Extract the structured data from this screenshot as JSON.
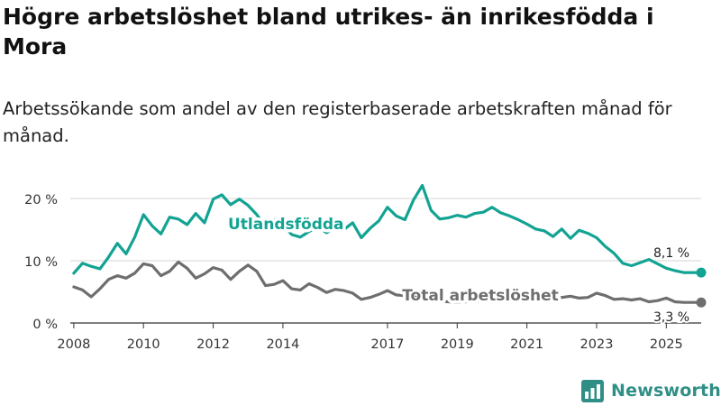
{
  "title": "Högre arbetslöshet bland utrikes- än inrikesfödda i Mora",
  "subtitle": "Arbetssökande som andel av den registerbaserade arbetskraften månad för månad.",
  "brand": {
    "name": "Newsworthy",
    "icon": "bar-chart-logo-icon",
    "color": "#2f8f86"
  },
  "chart_data": {
    "type": "line",
    "title": "Högre arbetslöshet bland utrikes- än inrikesfödda i Mora",
    "xlabel": "",
    "ylabel": "",
    "xlim": [
      2007.9,
      2026.0
    ],
    "ylim": [
      0,
      20
    ],
    "grid": true,
    "y_ticks": [
      0,
      10,
      20
    ],
    "y_tick_labels": [
      "0 %",
      "10 %",
      "20 %"
    ],
    "x_ticks": [
      2008,
      2010,
      2012,
      2014,
      2017,
      2019,
      2021,
      2023,
      2025
    ],
    "x_tick_labels": [
      "2008",
      "2010",
      "2012",
      "2014",
      "2017",
      "2019",
      "2021",
      "2023",
      "2025"
    ],
    "series": [
      {
        "name": "Utlandsfödda",
        "color": "#13a393",
        "end_label": "8,1 %",
        "x": [
          2008.0,
          2008.25,
          2008.5,
          2008.75,
          2009.0,
          2009.25,
          2009.5,
          2009.75,
          2010.0,
          2010.25,
          2010.5,
          2010.75,
          2011.0,
          2011.25,
          2011.5,
          2011.75,
          2012.0,
          2012.25,
          2012.5,
          2012.75,
          2013.0,
          2013.25,
          2013.5,
          2013.75,
          2014.0,
          2014.25,
          2014.5,
          2014.75,
          2015.0,
          2015.25,
          2015.5,
          2015.75,
          2016.0,
          2016.25,
          2016.5,
          2016.75,
          2017.0,
          2017.25,
          2017.5,
          2017.75,
          2018.0,
          2018.25,
          2018.5,
          2018.75,
          2019.0,
          2019.25,
          2019.5,
          2019.75,
          2020.0,
          2020.25,
          2020.5,
          2020.75,
          2021.0,
          2021.25,
          2021.5,
          2021.75,
          2022.0,
          2022.25,
          2022.5,
          2022.75,
          2023.0,
          2023.25,
          2023.5,
          2023.75,
          2024.0,
          2024.25,
          2024.5,
          2024.75,
          2025.0,
          2025.25,
          2025.5,
          2025.75,
          2026.0
        ],
        "values": [
          8.0,
          9.6,
          9.1,
          8.7,
          10.6,
          12.8,
          11.1,
          13.8,
          17.4,
          15.6,
          14.3,
          17.0,
          16.7,
          15.8,
          17.6,
          16.1,
          19.9,
          20.6,
          19.0,
          19.9,
          18.9,
          17.4,
          15.5,
          16.6,
          15.8,
          14.2,
          13.8,
          14.7,
          15.4,
          14.5,
          15.2,
          15.0,
          16.1,
          13.7,
          15.2,
          16.4,
          18.6,
          17.2,
          16.6,
          19.8,
          22.1,
          18.1,
          16.7,
          16.9,
          17.3,
          17.0,
          17.6,
          17.8,
          18.6,
          17.7,
          17.2,
          16.6,
          15.9,
          15.1,
          14.8,
          13.9,
          15.1,
          13.6,
          14.9,
          14.4,
          13.7,
          12.3,
          11.2,
          9.6,
          9.2,
          9.7,
          10.2,
          9.5,
          8.8,
          8.4,
          8.1,
          8.1,
          8.1
        ]
      },
      {
        "name": "Total arbetslöshet",
        "color": "#6e6e6e",
        "end_label": "3,3 %",
        "x": [
          2008.0,
          2008.25,
          2008.5,
          2008.75,
          2009.0,
          2009.25,
          2009.5,
          2009.75,
          2010.0,
          2010.25,
          2010.5,
          2010.75,
          2011.0,
          2011.25,
          2011.5,
          2011.75,
          2012.0,
          2012.25,
          2012.5,
          2012.75,
          2013.0,
          2013.25,
          2013.5,
          2013.75,
          2014.0,
          2014.25,
          2014.5,
          2014.75,
          2015.0,
          2015.25,
          2015.5,
          2015.75,
          2016.0,
          2016.25,
          2016.5,
          2016.75,
          2017.0,
          2017.25,
          2017.5,
          2017.75,
          2018.0,
          2018.25,
          2018.5,
          2018.75,
          2019.0,
          2019.25,
          2019.5,
          2019.75,
          2020.0,
          2020.25,
          2020.5,
          2020.75,
          2021.0,
          2021.25,
          2021.5,
          2021.75,
          2022.0,
          2022.25,
          2022.5,
          2022.75,
          2023.0,
          2023.25,
          2023.5,
          2023.75,
          2024.0,
          2024.25,
          2024.5,
          2024.75,
          2025.0,
          2025.25,
          2025.5,
          2025.75,
          2026.0
        ],
        "values": [
          5.8,
          5.3,
          4.2,
          5.5,
          7.0,
          7.6,
          7.2,
          8.0,
          9.5,
          9.2,
          7.6,
          8.3,
          9.8,
          8.8,
          7.2,
          7.9,
          8.9,
          8.5,
          7.0,
          8.3,
          9.3,
          8.3,
          6.0,
          6.2,
          6.8,
          5.5,
          5.3,
          6.3,
          5.7,
          4.9,
          5.4,
          5.2,
          4.8,
          3.8,
          4.1,
          4.6,
          5.2,
          4.5,
          4.4,
          4.2,
          4.0,
          3.8,
          3.5,
          3.4,
          3.3,
          3.4,
          3.6,
          3.5,
          3.8,
          3.7,
          3.9,
          3.6,
          4.1,
          4.0,
          4.2,
          3.9,
          4.1,
          4.3,
          4.0,
          4.1,
          4.8,
          4.4,
          3.8,
          3.9,
          3.7,
          3.9,
          3.4,
          3.6,
          4.0,
          3.4,
          3.3,
          3.3,
          3.3
        ]
      }
    ],
    "annotations": [
      {
        "text": "Utlandsfödda",
        "series": "Utlandsfödda"
      },
      {
        "text": "Total arbetslöshet",
        "series": "Total arbetslöshet"
      }
    ]
  }
}
